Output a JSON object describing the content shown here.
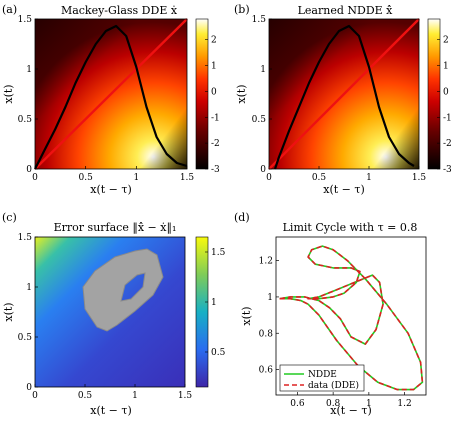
{
  "panels": {
    "a": {
      "label": "(a)",
      "title": "Mackey-Glass DDE ẋ",
      "xlabel": "x(t − τ)",
      "ylabel": "x(t)"
    },
    "b": {
      "label": "(b)",
      "title": "Learned NDDE x̂̇",
      "xlabel": "x(t − τ)",
      "ylabel": "x(t)"
    },
    "c": {
      "label": "(c)",
      "title": "Error surface ‖x̂̇ − ẋ‖₁",
      "xlabel": "x(t − τ)",
      "ylabel": "x(t)"
    },
    "d": {
      "label": "(d)",
      "title": "Limit Cycle with τ = 0.8",
      "xlabel": "x(t − τ)",
      "ylabel": "x(t)"
    }
  },
  "chart_data": [
    {
      "id": "a",
      "type": "heatmap",
      "x_ticks": [
        "0",
        "0.5",
        "1",
        "1.5"
      ],
      "y_ticks": [
        "0",
        "0.5",
        "1",
        "1.5"
      ],
      "xlim": [
        0,
        1.5
      ],
      "ylim": [
        0,
        1.5
      ],
      "colorbar": {
        "range": [
          -3,
          2.8
        ],
        "ticks": [
          "2",
          "1",
          "0",
          "-1",
          "-2",
          "-3"
        ],
        "tick_values": [
          2,
          1,
          0,
          -1,
          -2,
          -3
        ]
      },
      "overlay_curve_x": [
        0,
        0.1,
        0.2,
        0.3,
        0.4,
        0.5,
        0.6,
        0.7,
        0.8,
        0.9,
        1.0,
        1.1,
        1.2,
        1.3,
        1.4,
        1.5
      ],
      "overlay_curve_y": [
        0,
        0.2,
        0.4,
        0.62,
        0.86,
        1.07,
        1.25,
        1.38,
        1.43,
        1.33,
        1.02,
        0.62,
        0.32,
        0.15,
        0.06,
        0.03
      ],
      "diagonal": true
    },
    {
      "id": "b",
      "type": "heatmap",
      "x_ticks": [
        "0",
        "0.5",
        "1",
        "1.5"
      ],
      "y_ticks": [
        "0",
        "0.5",
        "1",
        "1.5"
      ],
      "xlim": [
        0,
        1.5
      ],
      "ylim": [
        0,
        1.5
      ],
      "colorbar": {
        "range": [
          -3,
          2.8
        ],
        "ticks": [
          "2",
          "1",
          "0",
          "-1",
          "-2",
          "-3"
        ],
        "tick_values": [
          2,
          1,
          0,
          -1,
          -2,
          -3
        ]
      },
      "overlay_curve_x": [
        0.06,
        0.1,
        0.2,
        0.3,
        0.4,
        0.5,
        0.6,
        0.7,
        0.8,
        0.9,
        1.0,
        1.1,
        1.2,
        1.3,
        1.4,
        1.45
      ],
      "overlay_curve_y": [
        0,
        0.12,
        0.38,
        0.62,
        0.86,
        1.07,
        1.25,
        1.38,
        1.43,
        1.33,
        1.02,
        0.62,
        0.32,
        0.15,
        0.06,
        0.03
      ],
      "diagonal": true
    },
    {
      "id": "c",
      "type": "heatmap",
      "x_ticks": [
        "0",
        "0.5",
        "1",
        "1.5"
      ],
      "y_ticks": [
        "0",
        "0.5",
        "1",
        "1.5"
      ],
      "xlim": [
        0,
        1.5
      ],
      "ylim": [
        0,
        1.5
      ],
      "colorbar": {
        "range": [
          0.15,
          1.65
        ],
        "ticks": [
          "1.5",
          "1",
          "0.5"
        ],
        "tick_values": [
          1.5,
          1,
          0.5
        ]
      },
      "attractor_outer": [
        [
          0.48,
          1.0
        ],
        [
          0.6,
          1.16
        ],
        [
          0.8,
          1.3
        ],
        [
          1.0,
          1.36
        ],
        [
          1.12,
          1.38
        ],
        [
          1.22,
          1.32
        ],
        [
          1.28,
          1.1
        ],
        [
          1.18,
          0.92
        ],
        [
          1.0,
          0.76
        ],
        [
          0.82,
          0.62
        ],
        [
          0.72,
          0.56
        ],
        [
          0.62,
          0.6
        ],
        [
          0.5,
          0.78
        ]
      ],
      "attractor_inner": [
        [
          0.9,
          1.02
        ],
        [
          1.02,
          1.12
        ],
        [
          1.1,
          1.14
        ],
        [
          1.08,
          1.0
        ],
        [
          0.96,
          0.88
        ],
        [
          0.86,
          0.86
        ]
      ]
    },
    {
      "id": "d",
      "type": "line",
      "x_ticks": [
        "0.6",
        "0.8",
        "1",
        "1.2"
      ],
      "y_ticks": [
        "0.6",
        "0.8",
        "1",
        "1.2"
      ],
      "xlim": [
        0.48,
        1.32
      ],
      "ylim": [
        0.46,
        1.33
      ],
      "legend": "bottom-left",
      "series": [
        {
          "name": "NDDE",
          "color": "#22cc22",
          "style": "solid",
          "x": [
            0.5,
            0.56,
            0.62,
            0.66,
            0.72,
            0.82,
            0.94,
            1.05,
            1.16,
            1.25,
            1.3,
            1.29,
            1.22,
            1.1,
            0.98,
            0.88,
            0.8,
            0.74,
            0.68,
            0.66,
            0.7,
            0.8,
            0.9,
            0.95,
            0.93,
            0.86,
            0.8,
            0.72,
            0.66,
            0.72,
            0.82,
            0.92,
            1.02,
            1.06,
            1.08,
            1.04,
            0.98,
            0.9,
            0.84,
            0.78,
            0.72,
            0.64,
            0.56,
            0.5
          ],
          "y": [
            0.99,
            0.99,
            0.98,
            0.96,
            0.9,
            0.76,
            0.62,
            0.53,
            0.49,
            0.49,
            0.53,
            0.64,
            0.8,
            0.96,
            1.1,
            1.2,
            1.26,
            1.28,
            1.26,
            1.22,
            1.18,
            1.16,
            1.16,
            1.14,
            1.08,
            1.02,
            1.0,
            0.99,
            0.99,
            1.0,
            1.04,
            1.08,
            1.12,
            1.08,
            0.96,
            0.82,
            0.74,
            0.78,
            0.88,
            0.94,
            0.98,
            1.0,
            1.0,
            0.99
          ]
        },
        {
          "name": "data (DDE)",
          "color": "#dd2222",
          "style": "dashed",
          "x": [
            0.5,
            0.56,
            0.62,
            0.66,
            0.72,
            0.82,
            0.94,
            1.05,
            1.16,
            1.25,
            1.3,
            1.29,
            1.22,
            1.1,
            0.98,
            0.88,
            0.8,
            0.74,
            0.68,
            0.66,
            0.7,
            0.8,
            0.9,
            0.95,
            0.93,
            0.86,
            0.8,
            0.72,
            0.66,
            0.72,
            0.82,
            0.92,
            1.02,
            1.06,
            1.08,
            1.04,
            0.98,
            0.9,
            0.84,
            0.78,
            0.72,
            0.64,
            0.56,
            0.5
          ],
          "y": [
            0.99,
            0.99,
            0.98,
            0.96,
            0.9,
            0.76,
            0.62,
            0.53,
            0.49,
            0.49,
            0.53,
            0.64,
            0.8,
            0.96,
            1.1,
            1.2,
            1.26,
            1.28,
            1.26,
            1.22,
            1.18,
            1.16,
            1.16,
            1.14,
            1.08,
            1.02,
            1.0,
            0.99,
            0.99,
            1.0,
            1.04,
            1.08,
            1.12,
            1.08,
            0.96,
            0.82,
            0.74,
            0.78,
            0.88,
            0.94,
            0.98,
            1.0,
            1.0,
            0.99
          ]
        }
      ]
    }
  ]
}
